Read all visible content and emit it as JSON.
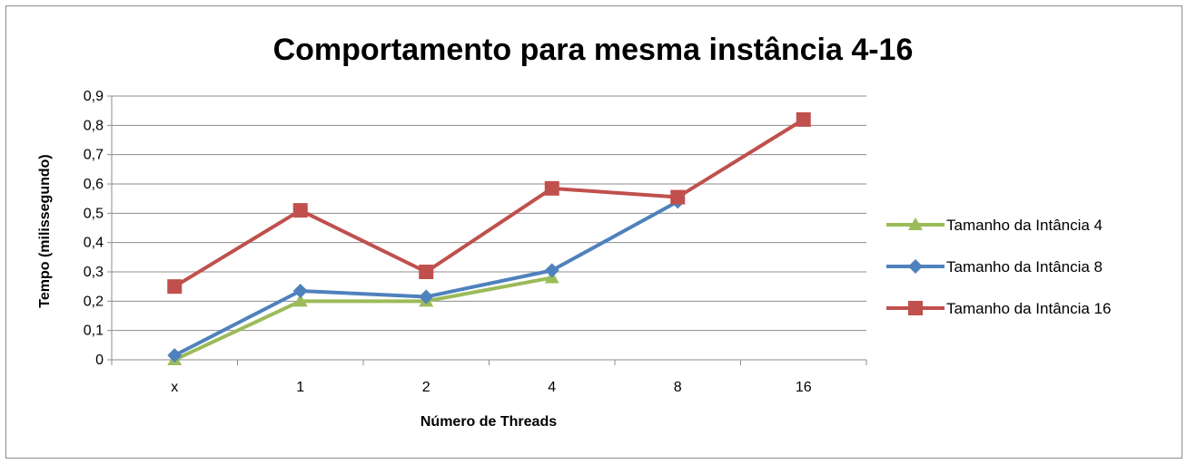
{
  "chart_data": {
    "type": "line",
    "title": "Comportamento para mesma instância 4-16",
    "xlabel": "Número de Threads",
    "ylabel": "Tempo (milissegundo)",
    "categories": [
      "x",
      "1",
      "2",
      "4",
      "8",
      "16"
    ],
    "ylim": [
      0,
      0.9
    ],
    "yticks": [
      "0",
      "0,1",
      "0,2",
      "0,3",
      "0,4",
      "0,5",
      "0,6",
      "0,7",
      "0,8",
      "0,9"
    ],
    "grid": true,
    "legend_position": "right",
    "series": [
      {
        "name": "Tamanho da Intância 4",
        "color": "#9bbb59",
        "marker": "triangle",
        "values": [
          0.0,
          0.2,
          0.2,
          0.28,
          null,
          null
        ]
      },
      {
        "name": "Tamanho da Intância 8",
        "color": "#4f81bd",
        "marker": "diamond",
        "values": [
          0.015,
          0.235,
          0.215,
          0.305,
          0.54,
          null
        ]
      },
      {
        "name": "Tamanho da Intância 16",
        "color": "#c0504d",
        "marker": "square",
        "values": [
          0.25,
          0.51,
          0.3,
          0.585,
          0.555,
          0.82
        ]
      }
    ]
  }
}
